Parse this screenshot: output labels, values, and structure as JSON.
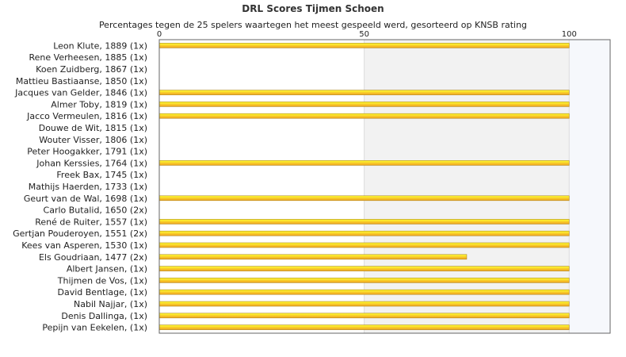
{
  "chart_data": {
    "type": "bar",
    "orientation": "horizontal",
    "title": "DRL Scores Tijmen Schoen",
    "subtitle": "Percentages tegen de 25 spelers waartegen het meest gespeeld werd, gesorteerd op KNSB rating",
    "xlim": [
      0,
      110
    ],
    "xticks": [
      0,
      50,
      100
    ],
    "grid": true,
    "categories": [
      "Leon Klute, 1889 (1x)",
      "Rene Verheesen, 1885 (1x)",
      "Koen Zuidberg, 1867 (1x)",
      "Mattieu Bastiaanse, 1850 (1x)",
      "Jacques van Gelder, 1846 (1x)",
      "Almer Toby, 1819 (1x)",
      "Jacco Vermeulen, 1816 (1x)",
      "Douwe de Wit, 1815 (1x)",
      "Wouter Visser, 1806 (1x)",
      "Peter Hoogakker, 1791 (1x)",
      "Johan Kerssies, 1764 (1x)",
      "Freek Bax, 1745 (1x)",
      "Mathijs Haerden, 1733 (1x)",
      "Geurt van de Wal, 1698 (1x)",
      "Carlo Butalid, 1650 (2x)",
      "René de Ruiter, 1557 (1x)",
      "Gertjan Pouderoyen, 1551 (2x)",
      "Kees van Asperen, 1530 (1x)",
      "Els Goudriaan, 1477 (2x)",
      "Albert Jansen,  (1x)",
      "Thijmen de Vos,  (1x)",
      "David Bentlage,  (1x)",
      "Nabil Najjar,  (1x)",
      "Denis Dallinga,  (1x)",
      "Pepijn van Eekelen,  (1x)"
    ],
    "values": [
      100,
      0,
      0,
      0,
      100,
      100,
      100,
      0,
      0,
      0,
      100,
      0,
      0,
      100,
      0,
      100,
      100,
      100,
      75,
      100,
      100,
      100,
      100,
      100,
      100
    ],
    "colors": {
      "bar_top": "#ffff33",
      "bar_bottom": "#f0a020",
      "bar_edge": "#b08a20",
      "band_mid": "#f2f2f2",
      "band_right": "#f6f8fc",
      "frame": "#666666"
    }
  }
}
